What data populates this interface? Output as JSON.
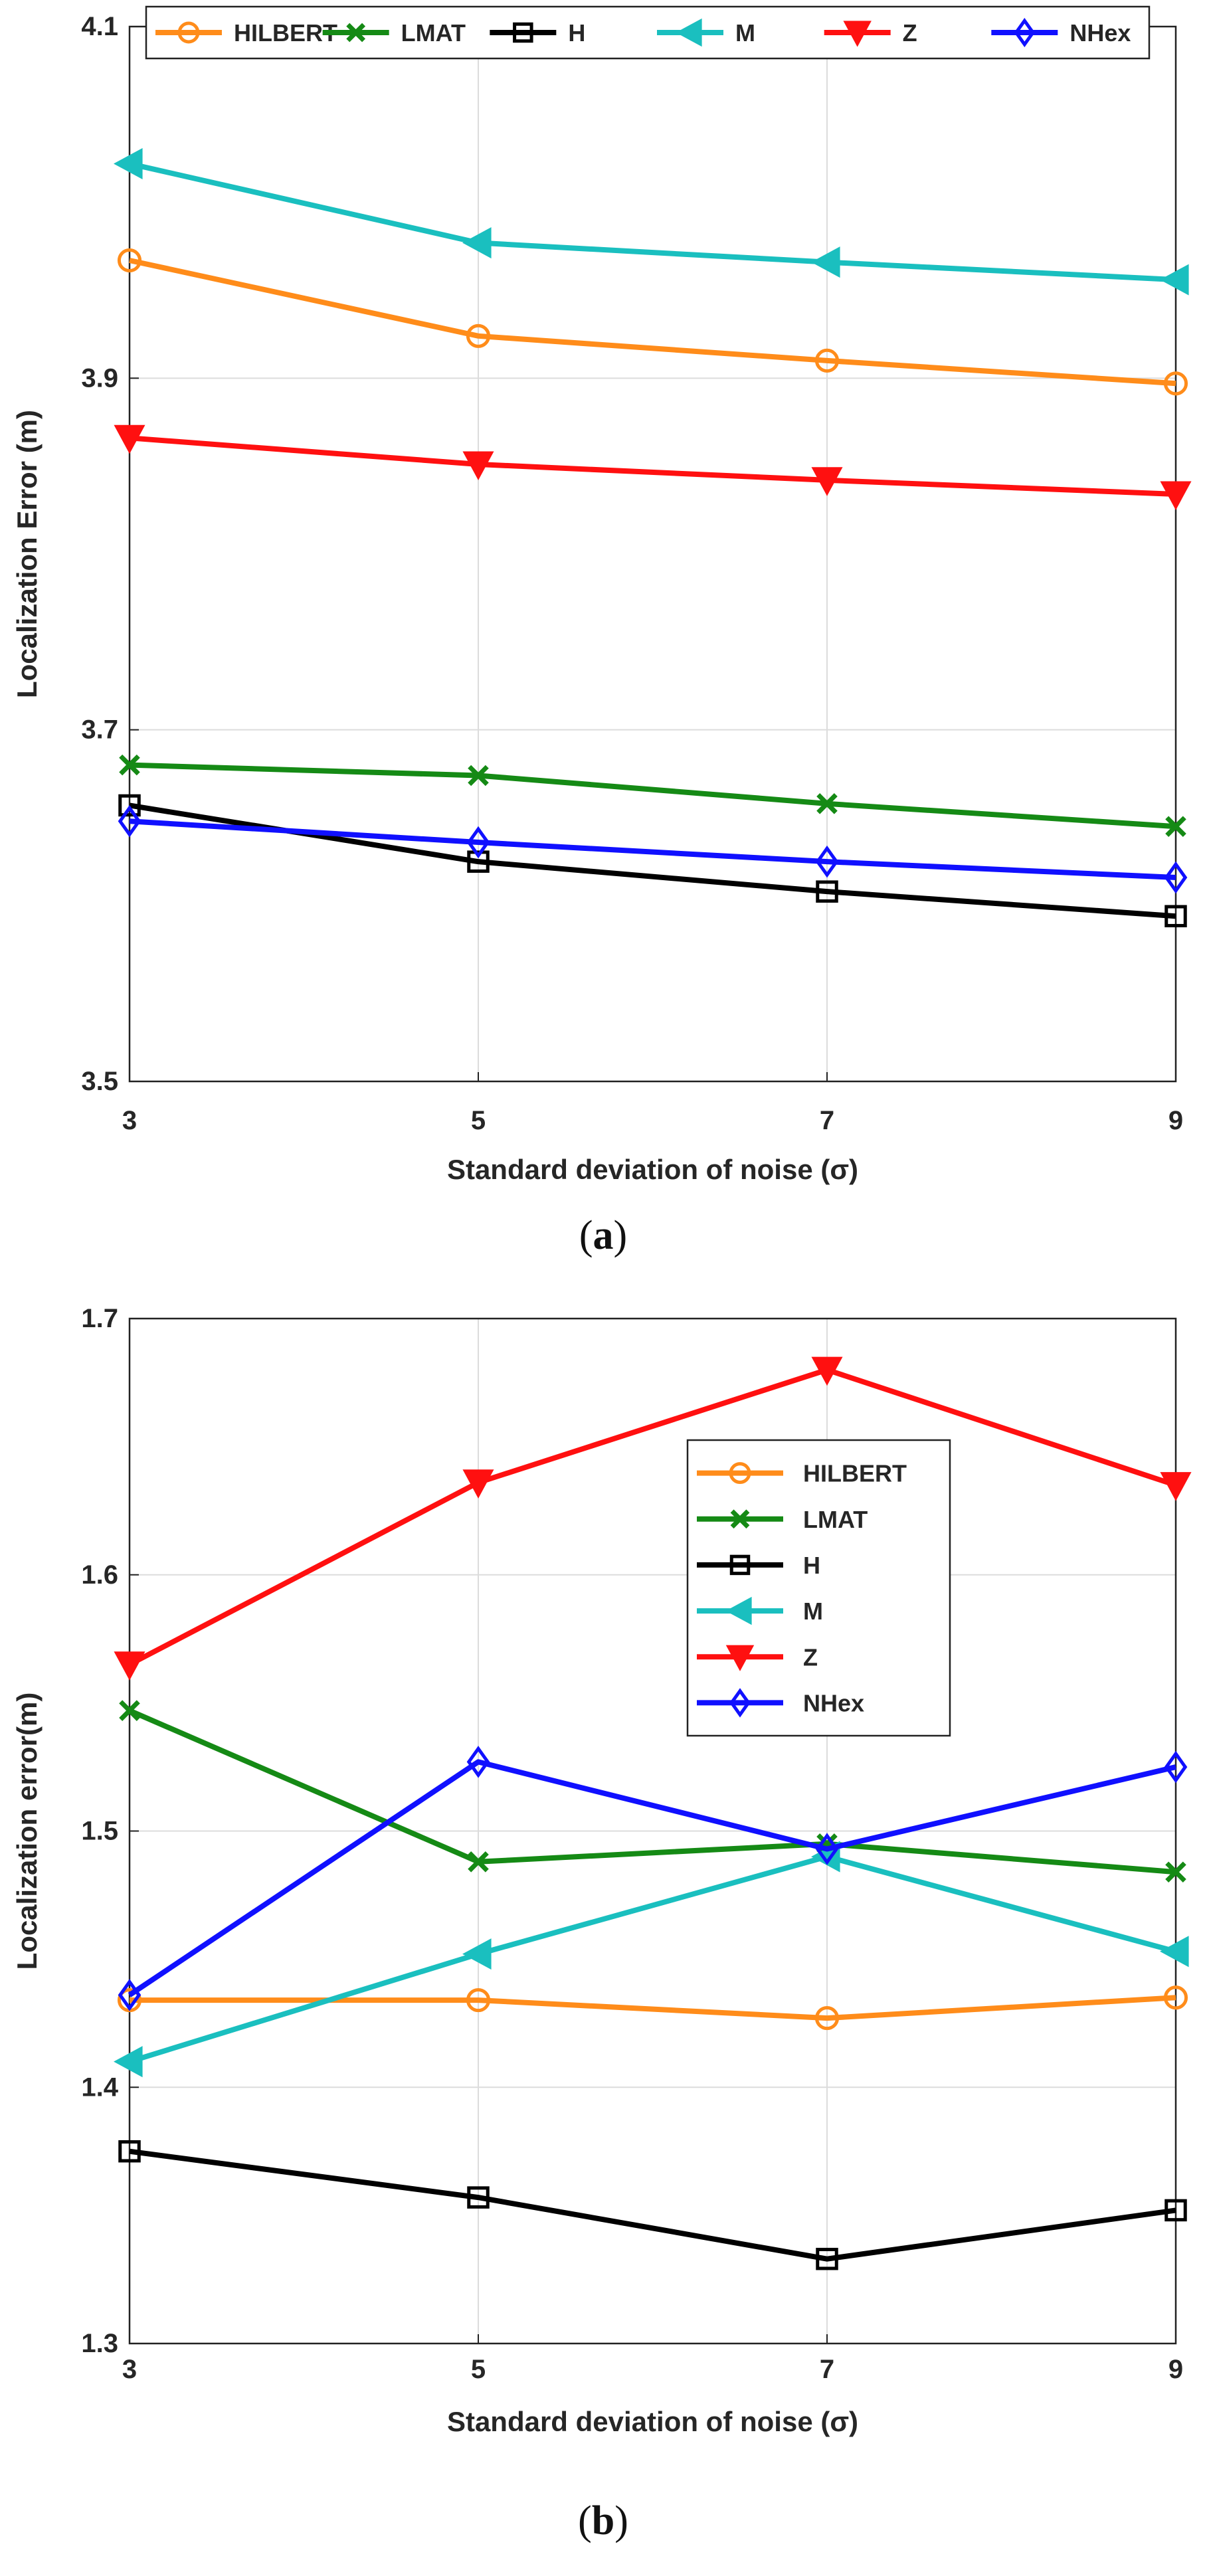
{
  "chart_data": [
    {
      "type": "line",
      "panel": "a",
      "caption": "(a)",
      "xlabel": "Standard deviation of noise (σ)",
      "ylabel": "Localization Error (m)",
      "x": [
        3,
        5,
        7,
        9
      ],
      "xticks": [
        "3",
        "5",
        "7",
        "9"
      ],
      "xlim": [
        3,
        9
      ],
      "ylim": [
        3.5,
        4.1
      ],
      "yticks": [
        3.5,
        3.7,
        3.9,
        4.1
      ],
      "ytick_labels": [
        "3.5",
        "3.7",
        "3.9",
        "4.1"
      ],
      "grid": true,
      "legend_position": "top-outside-horizontal",
      "series": [
        {
          "name": "HILBERT",
          "values": [
            3.967,
            3.924,
            3.91,
            3.897
          ],
          "color": "#ff8c1a",
          "marker": "circle"
        },
        {
          "name": "LMAT",
          "values": [
            3.68,
            3.674,
            3.658,
            3.645
          ],
          "color": "#158a15",
          "marker": "x"
        },
        {
          "name": "H",
          "values": [
            3.657,
            3.625,
            3.608,
            3.594
          ],
          "color": "#000000",
          "marker": "square"
        },
        {
          "name": "M",
          "values": [
            4.022,
            3.977,
            3.966,
            3.956
          ],
          "color": "#1abfbf",
          "marker": "triangle-left"
        },
        {
          "name": "Z",
          "values": [
            3.866,
            3.851,
            3.842,
            3.834
          ],
          "color": "#ff1010",
          "marker": "triangle-down"
        },
        {
          "name": "NHex",
          "values": [
            3.648,
            3.636,
            3.625,
            3.616
          ],
          "color": "#1010ff",
          "marker": "diamond"
        }
      ]
    },
    {
      "type": "line",
      "panel": "b",
      "caption": "(b)",
      "xlabel": "Standard deviation of noise (σ)",
      "ylabel": "Localization error(m)",
      "x": [
        3,
        5,
        7,
        9
      ],
      "xticks": [
        "3",
        "5",
        "7",
        "9"
      ],
      "xlim": [
        3,
        9
      ],
      "ylim": [
        1.3,
        1.7
      ],
      "yticks": [
        1.3,
        1.4,
        1.5,
        1.6,
        1.7
      ],
      "ytick_labels": [
        "1.3",
        "1.4",
        "1.5",
        "1.6",
        "1.7"
      ],
      "grid": true,
      "legend_position": "upper-right-inside",
      "series": [
        {
          "name": "HILBERT",
          "values": [
            1.434,
            1.434,
            1.427,
            1.435
          ],
          "color": "#ff8c1a",
          "marker": "circle"
        },
        {
          "name": "LMAT",
          "values": [
            1.547,
            1.488,
            1.495,
            1.484
          ],
          "color": "#158a15",
          "marker": "x"
        },
        {
          "name": "H",
          "values": [
            1.375,
            1.357,
            1.333,
            1.352
          ],
          "color": "#000000",
          "marker": "square"
        },
        {
          "name": "M",
          "values": [
            1.41,
            1.452,
            1.49,
            1.453
          ],
          "color": "#1abfbf",
          "marker": "triangle-left"
        },
        {
          "name": "Z",
          "values": [
            1.565,
            1.636,
            1.68,
            1.635
          ],
          "color": "#ff1010",
          "marker": "triangle-down"
        },
        {
          "name": "NHex",
          "values": [
            1.436,
            1.527,
            1.493,
            1.525
          ],
          "color": "#1010ff",
          "marker": "diamond"
        }
      ]
    }
  ]
}
